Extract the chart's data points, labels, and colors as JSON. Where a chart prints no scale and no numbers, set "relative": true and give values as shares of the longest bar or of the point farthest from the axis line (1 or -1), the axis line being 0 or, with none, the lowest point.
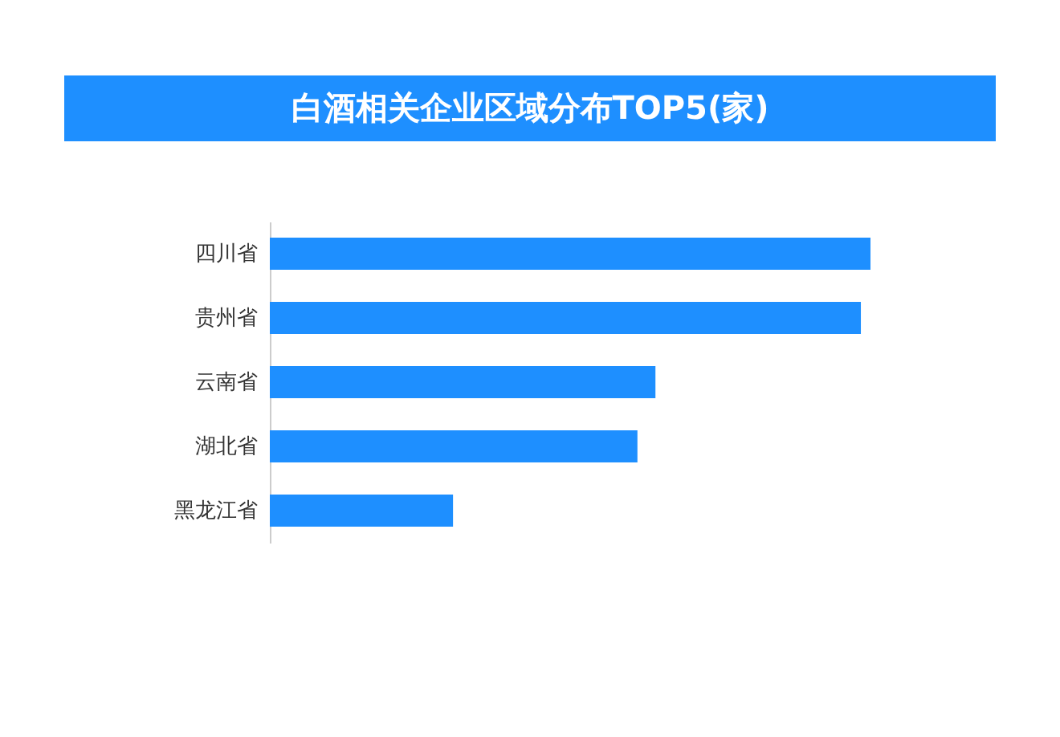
{
  "chart_data": {
    "type": "bar",
    "orientation": "horizontal",
    "relative": true,
    "title": "白酒相关企业区域分布TOP5(家)",
    "categories": [
      "四川省",
      "贵州省",
      "云南省",
      "湖北省",
      "黑龙江省"
    ],
    "values": [
      1,
      0.984,
      0.642,
      0.612,
      0.305
    ],
    "color": "#1e8fff"
  }
}
